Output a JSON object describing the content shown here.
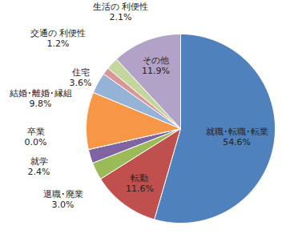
{
  "chart_data": {
    "type": "pie",
    "categories": [
      "就職･転職･転業",
      "転勤",
      "退職･廃業",
      "就学",
      "卒業",
      "結婚･離婚･縁組",
      "住宅",
      "交通の 利便性",
      "生活の 利便性",
      "その他"
    ],
    "values": [
      54.6,
      11.6,
      3.0,
      2.4,
      0.0,
      9.8,
      3.6,
      1.2,
      2.1,
      11.9
    ],
    "value_labels": [
      "54.6%",
      "11.6%",
      "3.0%",
      "2.4%",
      "0.0%",
      "9.8%",
      "3.6%",
      "1.2%",
      "2.1%",
      "11.9%"
    ],
    "colors": [
      "#4F81BD",
      "#C0504D",
      "#9BBB59",
      "#8064A2",
      "#4BACC6",
      "#F79646",
      "#95B3D7",
      "#D99694",
      "#C3D69B",
      "#B3A2C7"
    ],
    "data_labels": true
  }
}
